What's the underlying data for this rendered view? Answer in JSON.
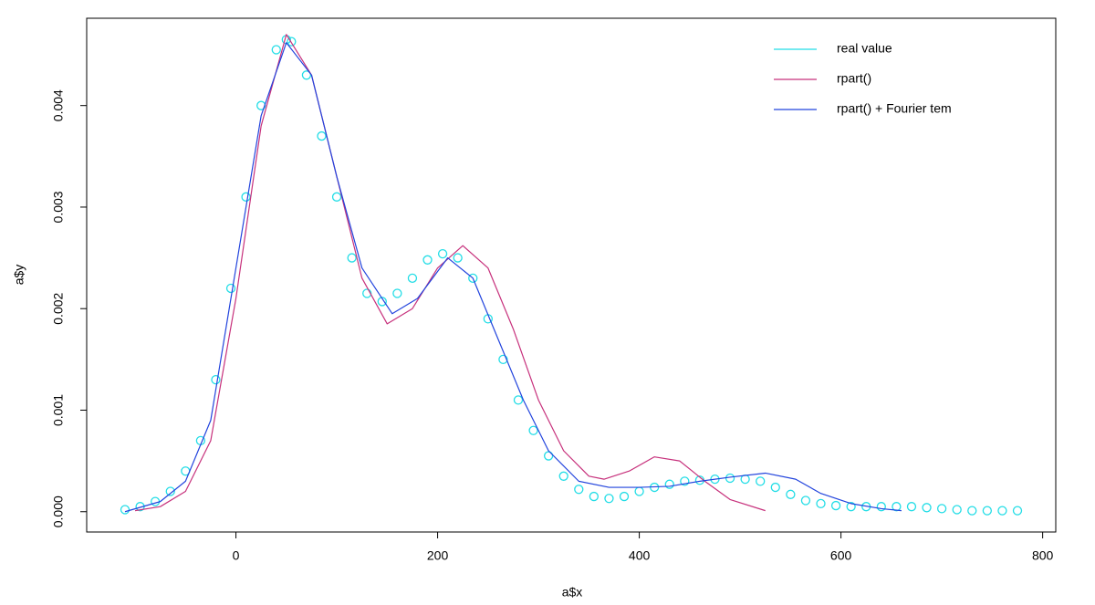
{
  "chart_data": {
    "type": "line",
    "x_label": "a$x",
    "y_label": "a$y",
    "xlim": [
      -148,
      813
    ],
    "ylim": [
      -0.0002,
      0.00486
    ],
    "xticks": [
      0,
      200,
      400,
      600,
      800
    ],
    "yticks": [
      {
        "value": 0,
        "label": "0.000"
      },
      0.001,
      0.002,
      0.003,
      0.004
    ],
    "series": [
      {
        "name": "real value",
        "color": "#22dde6",
        "marker": "circle",
        "x": [
          -110,
          -95,
          -80,
          -65,
          -50,
          -35,
          -20,
          -5,
          10,
          25,
          40,
          50,
          55,
          70,
          85,
          100,
          115,
          130,
          145,
          160,
          175,
          190,
          205,
          220,
          235,
          250,
          265,
          280,
          295,
          310,
          325,
          340,
          355,
          370,
          385,
          400,
          415,
          430,
          445,
          460,
          475,
          490,
          505,
          520,
          535,
          550,
          565,
          580,
          595,
          610,
          625,
          640,
          655,
          670,
          685,
          700,
          715,
          730,
          745,
          760,
          775
        ],
        "values": [
          2e-05,
          5e-05,
          0.0001,
          0.0002,
          0.0004,
          0.0007,
          0.0013,
          0.0022,
          0.0031,
          0.004,
          0.00455,
          0.00465,
          0.00463,
          0.0043,
          0.0037,
          0.0031,
          0.0025,
          0.00215,
          0.00207,
          0.00215,
          0.0023,
          0.00248,
          0.00254,
          0.0025,
          0.0023,
          0.0019,
          0.0015,
          0.0011,
          0.0008,
          0.00055,
          0.00035,
          0.00022,
          0.00015,
          0.00013,
          0.00015,
          0.0002,
          0.00024,
          0.00027,
          0.0003,
          0.00031,
          0.00032,
          0.00033,
          0.00032,
          0.0003,
          0.00024,
          0.00017,
          0.00011,
          8e-05,
          6e-05,
          5e-05,
          5e-05,
          5e-05,
          5e-05,
          5e-05,
          4e-05,
          3e-05,
          2e-05,
          1e-05,
          1e-05,
          1e-05,
          1e-05
        ]
      },
      {
        "name": "rpart()",
        "color": "#c7317c",
        "x": [
          -100,
          -75,
          -50,
          -25,
          0,
          25,
          50,
          75,
          100,
          125,
          150,
          175,
          200,
          225,
          250,
          275,
          300,
          325,
          350,
          365,
          390,
          415,
          440,
          465,
          490,
          525
        ],
        "values": [
          1e-05,
          5e-05,
          0.0002,
          0.0007,
          0.0021,
          0.0038,
          0.0047,
          0.0043,
          0.0033,
          0.0023,
          0.00185,
          0.002,
          0.0024,
          0.00262,
          0.0024,
          0.0018,
          0.0011,
          0.0006,
          0.00035,
          0.00032,
          0.0004,
          0.00054,
          0.0005,
          0.0003,
          0.00012,
          1e-05
        ]
      },
      {
        "name": "rpart() + Fourier tem",
        "color": "#2244dd",
        "x": [
          -110,
          -75,
          -50,
          -25,
          0,
          25,
          50,
          75,
          100,
          125,
          155,
          180,
          210,
          235,
          260,
          285,
          310,
          340,
          370,
          400,
          430,
          460,
          490,
          525,
          555,
          580,
          610,
          640,
          660
        ],
        "values": [
          0,
          0.0001,
          0.0003,
          0.0009,
          0.0024,
          0.0039,
          0.00462,
          0.0043,
          0.0033,
          0.0024,
          0.00195,
          0.0021,
          0.0025,
          0.0023,
          0.0017,
          0.0011,
          0.0006,
          0.0003,
          0.00024,
          0.00024,
          0.00025,
          0.0003,
          0.00034,
          0.00038,
          0.00032,
          0.00018,
          8e-05,
          3e-05,
          1e-05
        ]
      }
    ]
  }
}
